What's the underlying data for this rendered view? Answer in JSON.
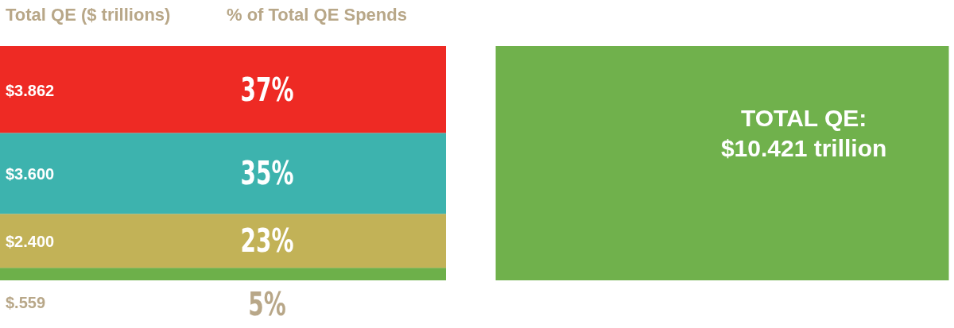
{
  "chart_data": {
    "type": "bar",
    "title": "Total QE ($ trillions)",
    "subtitle": "% of Total QE Spends",
    "categories": [
      null,
      null
    ],
    "stacked": true,
    "ylim": [
      0,
      10.421
    ],
    "series": [
      {
        "color": "#6db04a",
        "values": [
          0.559,
          null
        ],
        "value_labels": [
          "$.559",
          null
        ]
      },
      {
        "color": "#c2b257",
        "values": [
          2.4,
          null
        ],
        "value_labels": [
          "$2.400",
          null
        ]
      },
      {
        "color": "#3db3ae",
        "values": [
          3.6,
          null
        ],
        "value_labels": [
          "$3.600",
          null
        ]
      },
      {
        "color": "#ee2a24",
        "values": [
          3.862,
          null
        ],
        "value_labels": [
          "$3.862",
          null
        ]
      },
      {
        "color": "#70b14c",
        "values": [
          null,
          10.421
        ],
        "value_labels": [
          null,
          "TOTAL QE:\n$10.421 trillion"
        ]
      }
    ],
    "annotations": [
      "37%",
      "35%",
      "23%",
      "5%"
    ],
    "legend": false,
    "grid": false
  }
}
